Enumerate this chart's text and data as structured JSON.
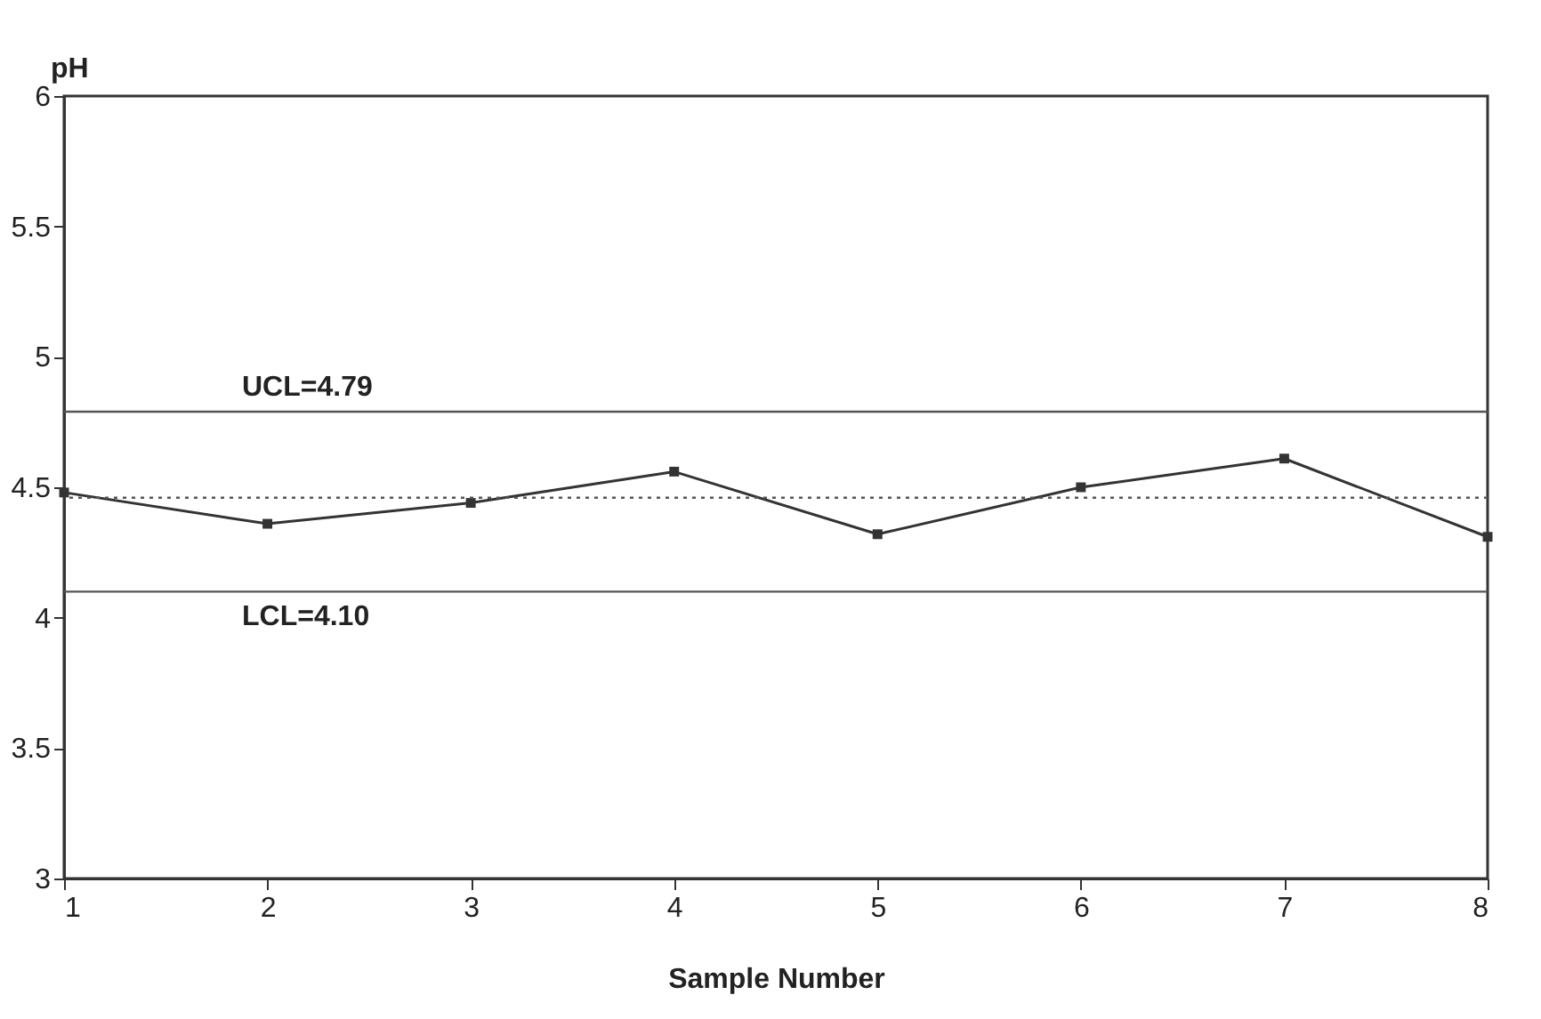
{
  "chart_data": {
    "type": "line",
    "xlabel": "Sample Number",
    "ylabel": "pH",
    "x": [
      1,
      2,
      3,
      4,
      5,
      6,
      7,
      8
    ],
    "series": [
      {
        "color": "#333333",
        "values": [
          4.48,
          4.36,
          4.44,
          4.56,
          4.32,
          4.5,
          4.61,
          4.31
        ]
      }
    ],
    "xlim": [
      1,
      8
    ],
    "xticks": [
      1,
      2,
      3,
      4,
      5,
      6,
      7,
      8
    ],
    "ylim": [
      3,
      6
    ],
    "yticks": [
      3,
      3.5,
      4,
      4.5,
      5,
      5.5,
      6
    ],
    "ref_lines": [
      {
        "axis": "y",
        "value": 4.79,
        "label": "UCL=4.79",
        "color": "#555555",
        "line_style": "solid"
      },
      {
        "axis": "y",
        "value": 4.46,
        "color": "#555555",
        "line_style": "dotted"
      },
      {
        "axis": "y",
        "value": 4.1,
        "label": "LCL=4.10",
        "color": "#555555",
        "line_style": "solid"
      }
    ],
    "marker": "square",
    "line_style": "solid",
    "grid": false
  }
}
